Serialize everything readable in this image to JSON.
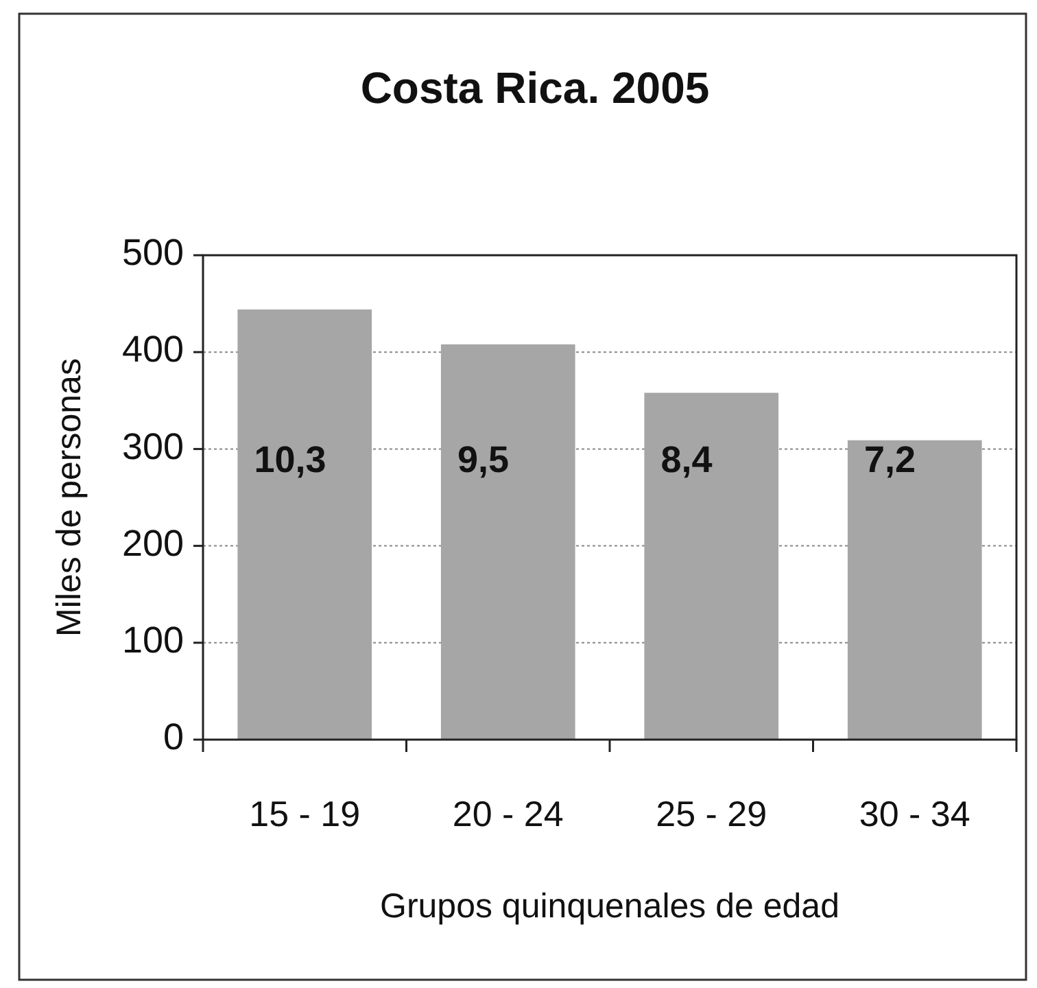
{
  "chart_data": {
    "type": "bar",
    "title": "Costa Rica. 2005",
    "xlabel": "Grupos quinquenales de edad",
    "ylabel": "Miles de personas",
    "categories": [
      "15 - 19",
      "20 - 24",
      "25 - 29",
      "30 - 34"
    ],
    "values": [
      444,
      408,
      358,
      309
    ],
    "color": "#a6a6a6",
    "annotations": [
      "10,3",
      "9,5",
      "8,4",
      "7,2"
    ],
    "ylim": [
      0,
      500
    ],
    "yticks": [
      0,
      100,
      200,
      300,
      400,
      500
    ],
    "grid": "y"
  }
}
